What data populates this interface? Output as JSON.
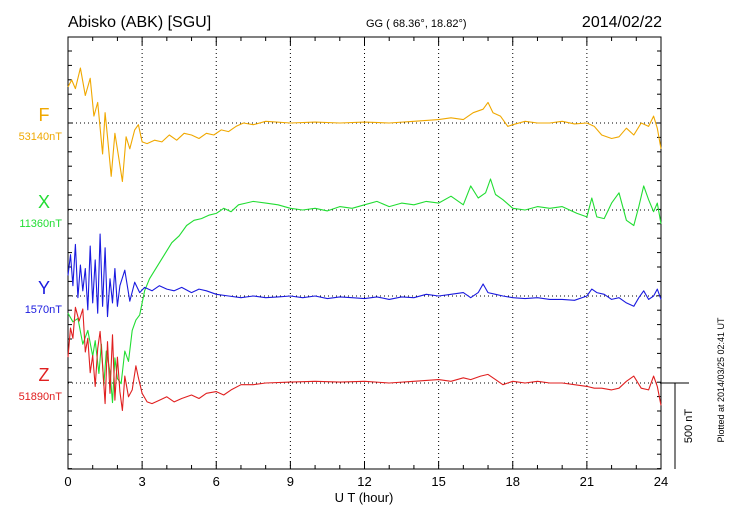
{
  "header": {
    "station": "Abisko (ABK)  [SGU]",
    "coords": "GG ( 68.36°,  18.82°)",
    "date": "2014/02/22"
  },
  "side_note": "Plotted at 2014/03/25 02:41 UT",
  "scale_label": "500 nT",
  "chart_data": {
    "type": "line",
    "xlabel": "U T (hour)",
    "xlim": [
      0,
      24
    ],
    "xticks": [
      "0",
      "3",
      "6",
      "9",
      "12",
      "15",
      "18",
      "21",
      "24"
    ],
    "grid": true,
    "units_per_div_nT": 500,
    "series": [
      {
        "name": "F",
        "baseline": "53140nT",
        "color": "#f0a800",
        "points": [
          [
            0,
            210
          ],
          [
            0.15,
            250
          ],
          [
            0.3,
            200
          ],
          [
            0.5,
            320
          ],
          [
            0.7,
            160
          ],
          [
            0.9,
            260
          ],
          [
            1.05,
            40
          ],
          [
            1.2,
            120
          ],
          [
            1.4,
            -180
          ],
          [
            1.5,
            60
          ],
          [
            1.6,
            -80
          ],
          [
            1.75,
            -310
          ],
          [
            1.9,
            -60
          ],
          [
            2.05,
            -200
          ],
          [
            2.2,
            -340
          ],
          [
            2.35,
            -80
          ],
          [
            2.5,
            -150
          ],
          [
            2.7,
            -40
          ],
          [
            2.85,
            -10
          ],
          [
            3,
            -110
          ],
          [
            3.2,
            -120
          ],
          [
            3.5,
            -100
          ],
          [
            3.8,
            -110
          ],
          [
            4.1,
            -70
          ],
          [
            4.4,
            -100
          ],
          [
            4.7,
            -60
          ],
          [
            5,
            -70
          ],
          [
            5.3,
            -90
          ],
          [
            5.6,
            -60
          ],
          [
            5.9,
            -70
          ],
          [
            6.2,
            -40
          ],
          [
            6.5,
            -50
          ],
          [
            6.8,
            -20
          ],
          [
            7.1,
            0
          ],
          [
            7.5,
            -10
          ],
          [
            8,
            10
          ],
          [
            9,
            0
          ],
          [
            10,
            5
          ],
          [
            11,
            0
          ],
          [
            12,
            5
          ],
          [
            13,
            0
          ],
          [
            14,
            10
          ],
          [
            15,
            20
          ],
          [
            15.5,
            30
          ],
          [
            16,
            20
          ],
          [
            16.4,
            60
          ],
          [
            16.8,
            80
          ],
          [
            17.0,
            120
          ],
          [
            17.2,
            60
          ],
          [
            17.5,
            40
          ],
          [
            17.8,
            -20
          ],
          [
            18,
            -10
          ],
          [
            18.5,
            10
          ],
          [
            19,
            0
          ],
          [
            19.5,
            0
          ],
          [
            20,
            10
          ],
          [
            20.5,
            -5
          ],
          [
            21,
            0
          ],
          [
            21.3,
            -20
          ],
          [
            21.6,
            -70
          ],
          [
            22,
            -90
          ],
          [
            22.3,
            -80
          ],
          [
            22.6,
            -30
          ],
          [
            22.9,
            -70
          ],
          [
            23.2,
            0
          ],
          [
            23.5,
            -20
          ],
          [
            23.7,
            40
          ],
          [
            23.85,
            -30
          ],
          [
            24,
            -150
          ]
        ]
      },
      {
        "name": "X",
        "baseline": "11360nT",
        "color": "#22dd33",
        "points": [
          [
            0,
            -600
          ],
          [
            0.2,
            -650
          ],
          [
            0.4,
            -630
          ],
          [
            0.6,
            -780
          ],
          [
            0.8,
            -700
          ],
          [
            1.0,
            -850
          ],
          [
            1.1,
            -760
          ],
          [
            1.25,
            -950
          ],
          [
            1.35,
            -780
          ],
          [
            1.45,
            -1020
          ],
          [
            1.55,
            -820
          ],
          [
            1.7,
            -940
          ],
          [
            1.8,
            -1120
          ],
          [
            1.9,
            -860
          ],
          [
            2.0,
            -980
          ],
          [
            2.15,
            -1010
          ],
          [
            2.3,
            -820
          ],
          [
            2.45,
            -880
          ],
          [
            2.6,
            -700
          ],
          [
            2.75,
            -640
          ],
          [
            2.9,
            -610
          ],
          [
            3.1,
            -470
          ],
          [
            3.3,
            -400
          ],
          [
            3.6,
            -330
          ],
          [
            3.9,
            -260
          ],
          [
            4.2,
            -190
          ],
          [
            4.5,
            -150
          ],
          [
            4.8,
            -90
          ],
          [
            5.1,
            -60
          ],
          [
            5.4,
            -50
          ],
          [
            5.7,
            -30
          ],
          [
            6,
            -20
          ],
          [
            6.3,
            10
          ],
          [
            6.6,
            -10
          ],
          [
            6.9,
            30
          ],
          [
            7.2,
            40
          ],
          [
            7.5,
            50
          ],
          [
            8,
            40
          ],
          [
            8.5,
            30
          ],
          [
            9,
            10
          ],
          [
            9.5,
            0
          ],
          [
            10,
            10
          ],
          [
            10.5,
            -5
          ],
          [
            11,
            20
          ],
          [
            11.5,
            10
          ],
          [
            12,
            30
          ],
          [
            12.5,
            50
          ],
          [
            13,
            20
          ],
          [
            13.5,
            40
          ],
          [
            14,
            30
          ],
          [
            14.5,
            50
          ],
          [
            15,
            40
          ],
          [
            15.5,
            80
          ],
          [
            16,
            30
          ],
          [
            16.3,
            140
          ],
          [
            16.6,
            70
          ],
          [
            16.9,
            100
          ],
          [
            17.1,
            180
          ],
          [
            17.3,
            90
          ],
          [
            17.6,
            60
          ],
          [
            18,
            10
          ],
          [
            18.5,
            0
          ],
          [
            19,
            20
          ],
          [
            19.5,
            10
          ],
          [
            20,
            20
          ],
          [
            20.3,
            0
          ],
          [
            20.6,
            -20
          ],
          [
            21,
            -40
          ],
          [
            21.2,
            70
          ],
          [
            21.4,
            -40
          ],
          [
            21.7,
            -50
          ],
          [
            22,
            40
          ],
          [
            22.3,
            100
          ],
          [
            22.6,
            -60
          ],
          [
            22.9,
            -90
          ],
          [
            23.1,
            20
          ],
          [
            23.3,
            140
          ],
          [
            23.5,
            60
          ],
          [
            23.7,
            -10
          ],
          [
            23.85,
            40
          ],
          [
            24,
            -80
          ]
        ]
      },
      {
        "name": "Y",
        "baseline": "1570nT",
        "color": "#1a1adf",
        "points": [
          [
            0,
            120
          ],
          [
            0.1,
            240
          ],
          [
            0.2,
            60
          ],
          [
            0.3,
            300
          ],
          [
            0.4,
            -10
          ],
          [
            0.5,
            180
          ],
          [
            0.6,
            30
          ],
          [
            0.7,
            160
          ],
          [
            0.8,
            -80
          ],
          [
            0.9,
            290
          ],
          [
            1.0,
            -40
          ],
          [
            1.1,
            210
          ],
          [
            1.2,
            -100
          ],
          [
            1.3,
            360
          ],
          [
            1.4,
            -60
          ],
          [
            1.5,
            280
          ],
          [
            1.6,
            -120
          ],
          [
            1.7,
            100
          ],
          [
            1.8,
            -40
          ],
          [
            1.9,
            160
          ],
          [
            2.0,
            -60
          ],
          [
            2.1,
            60
          ],
          [
            2.3,
            150
          ],
          [
            2.5,
            -30
          ],
          [
            2.7,
            80
          ],
          [
            2.9,
            20
          ],
          [
            3.1,
            50
          ],
          [
            3.4,
            30
          ],
          [
            3.7,
            60
          ],
          [
            4,
            40
          ],
          [
            4.3,
            30
          ],
          [
            4.6,
            50
          ],
          [
            5,
            20
          ],
          [
            5.3,
            40
          ],
          [
            5.6,
            30
          ],
          [
            6,
            10
          ],
          [
            6.5,
            0
          ],
          [
            7,
            -10
          ],
          [
            7.5,
            0
          ],
          [
            8,
            -10
          ],
          [
            8.5,
            -5
          ],
          [
            9,
            0
          ],
          [
            9.5,
            -10
          ],
          [
            10,
            0
          ],
          [
            10.5,
            -15
          ],
          [
            11,
            -5
          ],
          [
            11.5,
            -10
          ],
          [
            12,
            -15
          ],
          [
            12.5,
            -5
          ],
          [
            13,
            -20
          ],
          [
            13.5,
            -5
          ],
          [
            14,
            -10
          ],
          [
            14.5,
            10
          ],
          [
            15,
            0
          ],
          [
            15.5,
            10
          ],
          [
            16,
            20
          ],
          [
            16.3,
            -10
          ],
          [
            16.6,
            20
          ],
          [
            16.8,
            70
          ],
          [
            17,
            20
          ],
          [
            17.3,
            10
          ],
          [
            17.6,
            0
          ],
          [
            18,
            -10
          ],
          [
            18.5,
            -15
          ],
          [
            19,
            -10
          ],
          [
            19.5,
            -20
          ],
          [
            20,
            -20
          ],
          [
            20.5,
            -25
          ],
          [
            21,
            0
          ],
          [
            21.2,
            40
          ],
          [
            21.4,
            20
          ],
          [
            21.7,
            10
          ],
          [
            22,
            -20
          ],
          [
            22.3,
            -10
          ],
          [
            22.6,
            -40
          ],
          [
            22.9,
            -60
          ],
          [
            23.1,
            -10
          ],
          [
            23.3,
            30
          ],
          [
            23.5,
            -20
          ],
          [
            23.7,
            0
          ],
          [
            23.85,
            40
          ],
          [
            24,
            -20
          ]
        ]
      },
      {
        "name": "Z",
        "baseline": "51890nT",
        "color": "#e02020",
        "points": [
          [
            0,
            150
          ],
          [
            0.1,
            320
          ],
          [
            0.2,
            260
          ],
          [
            0.3,
            440
          ],
          [
            0.45,
            360
          ],
          [
            0.6,
            430
          ],
          [
            0.7,
            180
          ],
          [
            0.8,
            260
          ],
          [
            0.9,
            60
          ],
          [
            1.0,
            160
          ],
          [
            1.1,
            -20
          ],
          [
            1.2,
            200
          ],
          [
            1.3,
            300
          ],
          [
            1.4,
            100
          ],
          [
            1.5,
            -120
          ],
          [
            1.6,
            240
          ],
          [
            1.7,
            -60
          ],
          [
            1.8,
            280
          ],
          [
            1.9,
            -100
          ],
          [
            2.0,
            150
          ],
          [
            2.1,
            -50
          ],
          [
            2.2,
            -160
          ],
          [
            2.3,
            40
          ],
          [
            2.45,
            -80
          ],
          [
            2.6,
            -40
          ],
          [
            2.75,
            100
          ],
          [
            2.85,
            30
          ],
          [
            3.0,
            -60
          ],
          [
            3.2,
            -110
          ],
          [
            3.4,
            -120
          ],
          [
            3.7,
            -100
          ],
          [
            4.0,
            -80
          ],
          [
            4.3,
            -110
          ],
          [
            4.6,
            -90
          ],
          [
            5,
            -70
          ],
          [
            5.3,
            -90
          ],
          [
            5.6,
            -60
          ],
          [
            6,
            -50
          ],
          [
            6.3,
            -70
          ],
          [
            6.6,
            -40
          ],
          [
            7,
            -10
          ],
          [
            7.5,
            -10
          ],
          [
            8,
            0
          ],
          [
            9,
            5
          ],
          [
            10,
            10
          ],
          [
            11,
            5
          ],
          [
            12,
            10
          ],
          [
            13,
            0
          ],
          [
            14,
            10
          ],
          [
            15,
            20
          ],
          [
            15.5,
            10
          ],
          [
            16,
            30
          ],
          [
            16.3,
            20
          ],
          [
            16.7,
            40
          ],
          [
            17,
            50
          ],
          [
            17.3,
            20
          ],
          [
            17.6,
            -10
          ],
          [
            18,
            10
          ],
          [
            18.5,
            0
          ],
          [
            19,
            10
          ],
          [
            19.5,
            0
          ],
          [
            20,
            0
          ],
          [
            20.5,
            -10
          ],
          [
            21,
            -20
          ],
          [
            21.3,
            -30
          ],
          [
            21.6,
            -30
          ],
          [
            22,
            -40
          ],
          [
            22.3,
            -30
          ],
          [
            22.6,
            10
          ],
          [
            22.9,
            40
          ],
          [
            23.2,
            -30
          ],
          [
            23.5,
            -40
          ],
          [
            23.7,
            40
          ],
          [
            23.85,
            -20
          ],
          [
            24,
            -130
          ]
        ]
      }
    ]
  }
}
